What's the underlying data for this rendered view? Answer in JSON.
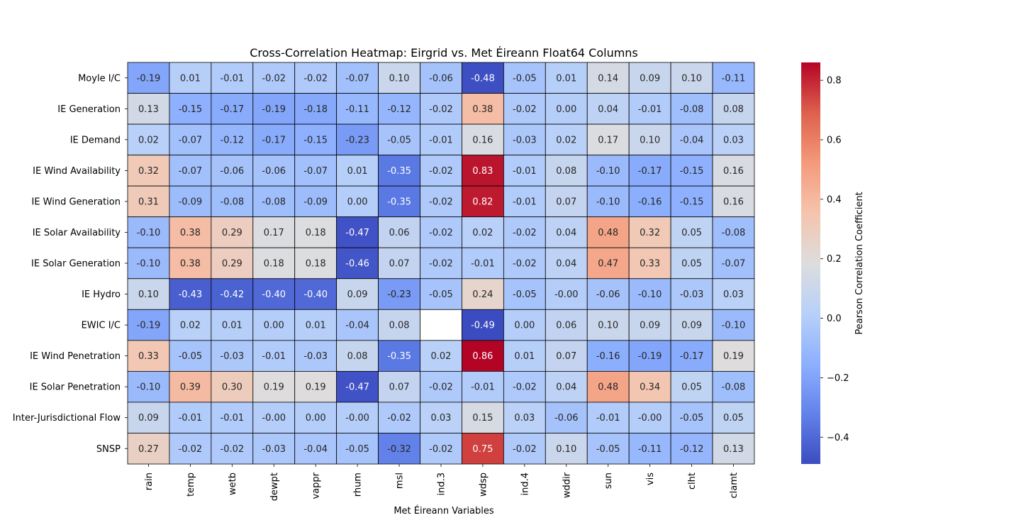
{
  "chart_data": {
    "type": "heatmap",
    "title": "Cross-Correlation Heatmap: Eirgrid vs. Met Éireann Float64 Columns",
    "xlabel": "Met Éireann Variables",
    "ylabel": "",
    "x_categories": [
      "rain",
      "temp",
      "wetb",
      "dewpt",
      "vappr",
      "rhum",
      "msl",
      "ind.3",
      "wdsp",
      "ind.4",
      "wddir",
      "sun",
      "vis",
      "clht",
      "clamt"
    ],
    "y_categories": [
      "Moyle I/C",
      "IE Generation",
      "IE Demand",
      "IE Wind Availability",
      "IE Wind Generation",
      "IE Solar Availability",
      "IE Solar Generation",
      "IE Hydro",
      "EWIC I/C",
      "IE Wind Penetration",
      "IE Solar Penetration",
      "Inter-Jurisdictional Flow",
      "SNSP"
    ],
    "values": [
      [
        "-0.19",
        "0.01",
        "-0.01",
        "-0.02",
        "-0.02",
        "-0.07",
        "0.10",
        "-0.06",
        "-0.48",
        "-0.05",
        "0.01",
        "0.14",
        "0.09",
        "0.10",
        "-0.11"
      ],
      [
        "0.13",
        "-0.15",
        "-0.17",
        "-0.19",
        "-0.18",
        "-0.11",
        "-0.12",
        "-0.02",
        "0.38",
        "-0.02",
        "0.00",
        "0.04",
        "-0.01",
        "-0.08",
        "0.08"
      ],
      [
        "0.02",
        "-0.07",
        "-0.12",
        "-0.17",
        "-0.15",
        "-0.23",
        "-0.05",
        "-0.01",
        "0.16",
        "-0.03",
        "0.02",
        "0.17",
        "0.10",
        "-0.04",
        "0.03"
      ],
      [
        "0.32",
        "-0.07",
        "-0.06",
        "-0.06",
        "-0.07",
        "0.01",
        "-0.35",
        "-0.02",
        "0.83",
        "-0.01",
        "0.08",
        "-0.10",
        "-0.17",
        "-0.15",
        "0.16"
      ],
      [
        "0.31",
        "-0.09",
        "-0.08",
        "-0.08",
        "-0.09",
        "0.00",
        "-0.35",
        "-0.02",
        "0.82",
        "-0.01",
        "0.07",
        "-0.10",
        "-0.16",
        "-0.15",
        "0.16"
      ],
      [
        "-0.10",
        "0.38",
        "0.29",
        "0.17",
        "0.18",
        "-0.47",
        "0.06",
        "-0.02",
        "0.02",
        "-0.02",
        "0.04",
        "0.48",
        "0.32",
        "0.05",
        "-0.08"
      ],
      [
        "-0.10",
        "0.38",
        "0.29",
        "0.18",
        "0.18",
        "-0.46",
        "0.07",
        "-0.02",
        "-0.01",
        "-0.02",
        "0.04",
        "0.47",
        "0.33",
        "0.05",
        "-0.07"
      ],
      [
        "0.10",
        "-0.43",
        "-0.42",
        "-0.40",
        "-0.40",
        "0.09",
        "-0.23",
        "-0.05",
        "0.24",
        "-0.05",
        "-0.00",
        "-0.06",
        "-0.10",
        "-0.03",
        "0.03"
      ],
      [
        "-0.19",
        "0.02",
        "0.01",
        "0.00",
        "0.01",
        "-0.04",
        "0.08",
        null,
        "-0.49",
        "0.00",
        "0.06",
        "0.10",
        "0.09",
        "0.09",
        "-0.10"
      ],
      [
        "0.33",
        "-0.05",
        "-0.03",
        "-0.01",
        "-0.03",
        "0.08",
        "-0.35",
        "0.02",
        "0.86",
        "0.01",
        "0.07",
        "-0.16",
        "-0.19",
        "-0.17",
        "0.19"
      ],
      [
        "-0.10",
        "0.39",
        "0.30",
        "0.19",
        "0.19",
        "-0.47",
        "0.07",
        "-0.02",
        "-0.01",
        "-0.02",
        "0.04",
        "0.48",
        "0.34",
        "0.05",
        "-0.08"
      ],
      [
        "0.09",
        "-0.01",
        "-0.01",
        "-0.00",
        "0.00",
        "-0.00",
        "-0.02",
        "0.03",
        "0.15",
        "0.03",
        "-0.06",
        "-0.01",
        "-0.00",
        "-0.05",
        "0.05"
      ],
      [
        "0.27",
        "-0.02",
        "-0.02",
        "-0.03",
        "-0.04",
        "-0.05",
        "-0.32",
        "-0.02",
        "0.75",
        "-0.02",
        "0.10",
        "-0.05",
        "-0.11",
        "-0.12",
        "0.13"
      ]
    ],
    "colorbar": {
      "label": "Pearson Correlation Coefficient",
      "colormap": "coolwarm",
      "range": [
        -0.49,
        0.86
      ],
      "ticks": [
        "−0.4",
        "−0.2",
        "0.0",
        "0.2",
        "0.4",
        "0.6",
        "0.8"
      ],
      "tick_values": [
        -0.4,
        -0.2,
        0.0,
        0.2,
        0.4,
        0.6,
        0.8
      ]
    },
    "grid": true,
    "legend": "right"
  }
}
